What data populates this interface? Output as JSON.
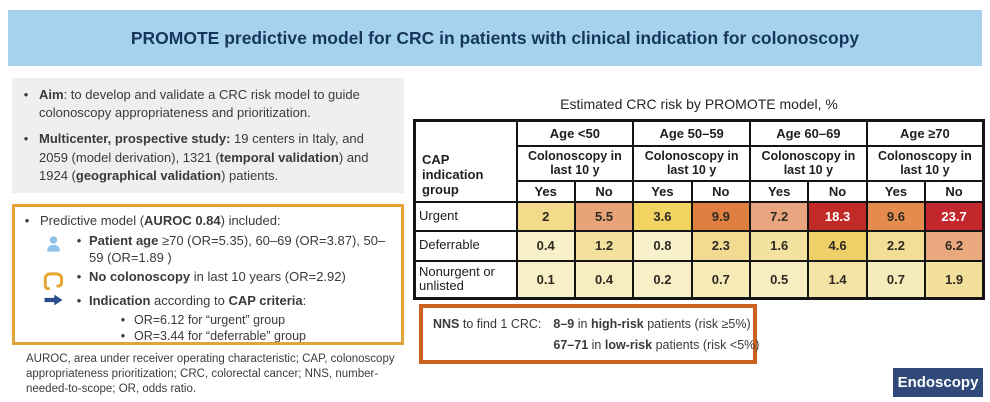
{
  "banner": {
    "title": "PROMOTE predictive model for CRC in patients with clinical indication for colonoscopy"
  },
  "ui": {
    "bullet": "•"
  },
  "colors": {
    "banner_bg": "#a7d2ed",
    "banner_text": "#17365c",
    "panel_bg": "#f0efed",
    "model_box_border": "#e2a33b",
    "nns_box_border": "#cb611c",
    "patient_icon": "#8fc2e9",
    "colon_icon": "#e6a52f",
    "arrow_icon": "#2b4c8c",
    "table_border": "#141414",
    "logo_bg": "#2f4979",
    "logo_text": "#ffffff"
  },
  "left": {
    "study_bullets": [
      {
        "segments": [
          {
            "t": "Aim",
            "b": true
          },
          {
            "t": ": to develop and validate a CRC risk model to guide colonoscopy appropriateness and prioritization.",
            "b": false
          }
        ]
      },
      {
        "segments": [
          {
            "t": "Multicenter, prospective study:",
            "b": true
          },
          {
            "t": " 19 centers in Italy, and 2059 (model derivation), 1321 (",
            "b": false
          },
          {
            "t": "temporal validation",
            "b": true
          },
          {
            "t": ") and 1924 (",
            "b": false
          },
          {
            "t": "geographical validation",
            "b": true
          },
          {
            "t": ") patients.",
            "b": false
          }
        ]
      }
    ],
    "model_box": {
      "heading": {
        "segments": [
          {
            "t": "Predictive model (",
            "b": false
          },
          {
            "t": "AUROC 0.84",
            "b": true
          },
          {
            "t": ") included:",
            "b": false
          }
        ]
      },
      "items": [
        {
          "icon": "patient-icon",
          "segments": [
            {
              "t": "Patient age",
              "b": true
            },
            {
              "t": " ≥70 (OR=5.35), 60–69 (OR=3.87), 50–59 (OR=1.89 )",
              "b": false
            }
          ]
        },
        {
          "icon": "colon-icon",
          "segments": [
            {
              "t": "No colonoscopy",
              "b": true
            },
            {
              "t": " in last 10 years (OR=2.92)",
              "b": false
            }
          ]
        },
        {
          "icon": "arrow-right-icon",
          "segments": [
            {
              "t": "Indication",
              "b": true
            },
            {
              "t": " according to ",
              "b": false
            },
            {
              "t": "CAP criteria",
              "b": true
            },
            {
              "t": ":",
              "b": false
            }
          ]
        }
      ],
      "sub_items": [
        "OR=6.12 for “urgent” group",
        "OR=3.44 for “deferrable” group"
      ]
    },
    "footnote": "AUROC, area under receiver operating characteristic; CAP, colonoscopy appropriateness prioritization; CRC, colorectal cancer; NNS, number-needed-to-scope; OR, odds ratio."
  },
  "table": {
    "title": "Estimated CRC risk by PROMOTE model, %",
    "corner_label": "CAP indication group",
    "age_groups": [
      "Age <50",
      "Age 50–59",
      "Age 60–69",
      "Age ≥70"
    ],
    "colonoscopy_label": "Colonoscopy in last 10 y",
    "yes_label": "Yes",
    "no_label": "No",
    "rows": [
      {
        "label": "Urgent",
        "cells": [
          {
            "v": "2",
            "bg": "#f4db8b"
          },
          {
            "v": "5.5",
            "bg": "#e9a378"
          },
          {
            "v": "3.6",
            "bg": "#f1d462"
          },
          {
            "v": "9.9",
            "bg": "#e08040"
          },
          {
            "v": "7.2",
            "bg": "#e8a580"
          },
          {
            "v": "18.3",
            "bg": "#c02b28",
            "fg": "#ffffff"
          },
          {
            "v": "9.6",
            "bg": "#e48b4d"
          },
          {
            "v": "23.7",
            "bg": "#c1272d",
            "fg": "#ffffff"
          }
        ]
      },
      {
        "label": "Deferrable",
        "cells": [
          {
            "v": "0.4",
            "bg": "#f8f0c8"
          },
          {
            "v": "1.2",
            "bg": "#f4e19d"
          },
          {
            "v": "0.8",
            "bg": "#f9f1cb"
          },
          {
            "v": "2.3",
            "bg": "#f2db91"
          },
          {
            "v": "1.6",
            "bg": "#f4e2a0"
          },
          {
            "v": "4.6",
            "bg": "#efcf68"
          },
          {
            "v": "2.2",
            "bg": "#f3de95"
          },
          {
            "v": "6.2",
            "bg": "#e9a87d"
          }
        ]
      },
      {
        "label": "Nonurgent or unlisted",
        "cells": [
          {
            "v": "0.1",
            "bg": "#f8efc6"
          },
          {
            "v": "0.4",
            "bg": "#f7edc0"
          },
          {
            "v": "0.2",
            "bg": "#f8efc6"
          },
          {
            "v": "0.7",
            "bg": "#f6eab7"
          },
          {
            "v": "0.5",
            "bg": "#f7edc1"
          },
          {
            "v": "1.4",
            "bg": "#f3e3a4"
          },
          {
            "v": "0.7",
            "bg": "#f6ebba"
          },
          {
            "v": "1.9",
            "bg": "#f2df99"
          }
        ]
      }
    ]
  },
  "chart_data": {
    "type": "heatmap",
    "title": "Estimated CRC risk by PROMOTE model, %",
    "row_label_header": "CAP indication group",
    "col_groups": [
      "Age <50",
      "Age 50–59",
      "Age 60–69",
      "Age ≥70"
    ],
    "col_subheader": "Colonoscopy in last 10 y",
    "col_subgroups": [
      "Yes",
      "No"
    ],
    "rows": [
      "Urgent",
      "Deferrable",
      "Nonurgent or unlisted"
    ],
    "values": [
      [
        2,
        5.5,
        3.6,
        9.9,
        7.2,
        18.3,
        9.6,
        23.7
      ],
      [
        0.4,
        1.2,
        0.8,
        2.3,
        1.6,
        4.6,
        2.2,
        6.2
      ],
      [
        0.1,
        0.4,
        0.2,
        0.7,
        0.5,
        1.4,
        0.7,
        1.9
      ]
    ],
    "color_scale": "yellow (low) to dark red (high)"
  },
  "nns_box": {
    "label": {
      "segments": [
        {
          "t": "NNS",
          "b": true
        },
        {
          "t": " to find 1 CRC:",
          "b": false
        }
      ]
    },
    "line1": {
      "segments": [
        {
          "t": "8–9",
          "b": true
        },
        {
          "t": " in ",
          "b": false
        },
        {
          "t": "high-risk",
          "b": true
        },
        {
          "t": " patients (risk ≥5%)",
          "b": false
        }
      ]
    },
    "line2": {
      "segments": [
        {
          "t": "67–71",
          "b": true
        },
        {
          "t": " in ",
          "b": false
        },
        {
          "t": "low-risk",
          "b": true
        },
        {
          "t": " patients (risk <5%)",
          "b": false
        }
      ]
    }
  },
  "logo": {
    "text": "Endoscopy"
  }
}
